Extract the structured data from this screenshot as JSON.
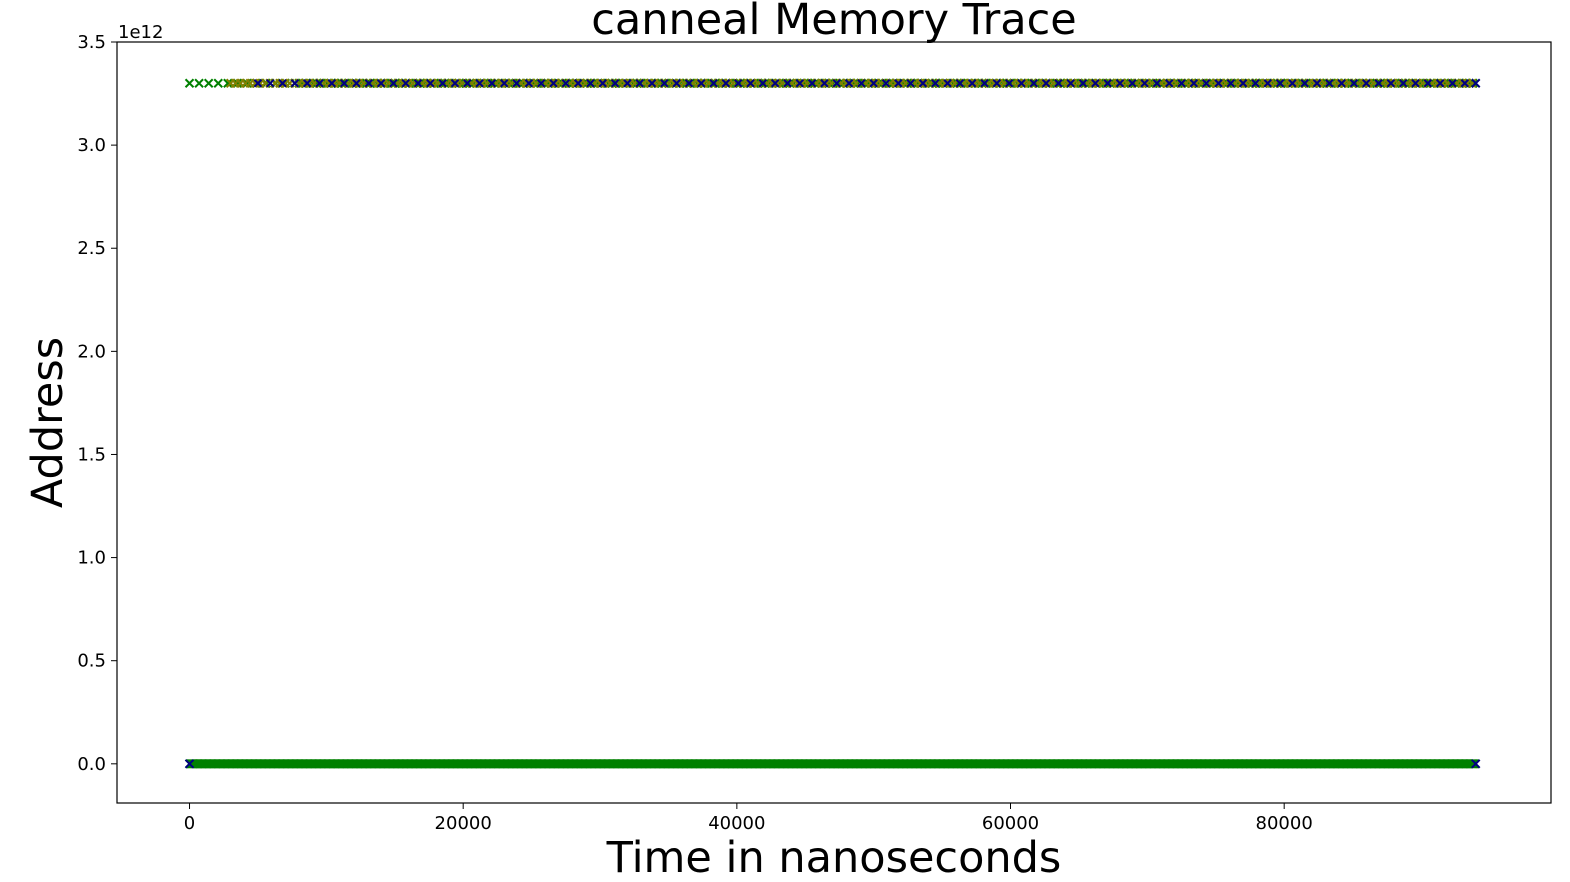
{
  "chart_data": {
    "type": "scatter",
    "title": "canneal Memory Trace",
    "xlabel": "Time in nanoseconds",
    "ylabel": "Address",
    "y_offset_label": "1e12",
    "xlim": [
      -5300,
      99500
    ],
    "ylim": [
      -0.19,
      3.5
    ],
    "y_unit_multiplier": 1000000000000.0,
    "x_ticks": [
      0,
      20000,
      40000,
      60000,
      80000
    ],
    "x_tick_labels": [
      "0",
      "20000",
      "40000",
      "60000",
      "80000"
    ],
    "y_ticks": [
      0.0,
      0.5,
      1.0,
      1.5,
      2.0,
      2.5,
      3.0,
      3.5
    ],
    "y_tick_labels": [
      "0.0",
      "0.5",
      "1.0",
      "1.5",
      "2.0",
      "2.5",
      "3.0",
      "3.5"
    ],
    "grid": false,
    "marker": "x",
    "series": [
      {
        "color": "#008000",
        "x_range": [
          0,
          94000
        ],
        "y_levels": [
          0.0,
          3.3
        ],
        "description_level_high": "upper band",
        "description_level_low": "lower band"
      },
      {
        "color": "#000080",
        "x_range": [
          5000,
          94000
        ],
        "y_levels": [
          0.0,
          3.3
        ]
      },
      {
        "color": "#808000",
        "x_range": [
          3000,
          94000
        ],
        "y_levels": [
          3.3
        ]
      }
    ]
  }
}
